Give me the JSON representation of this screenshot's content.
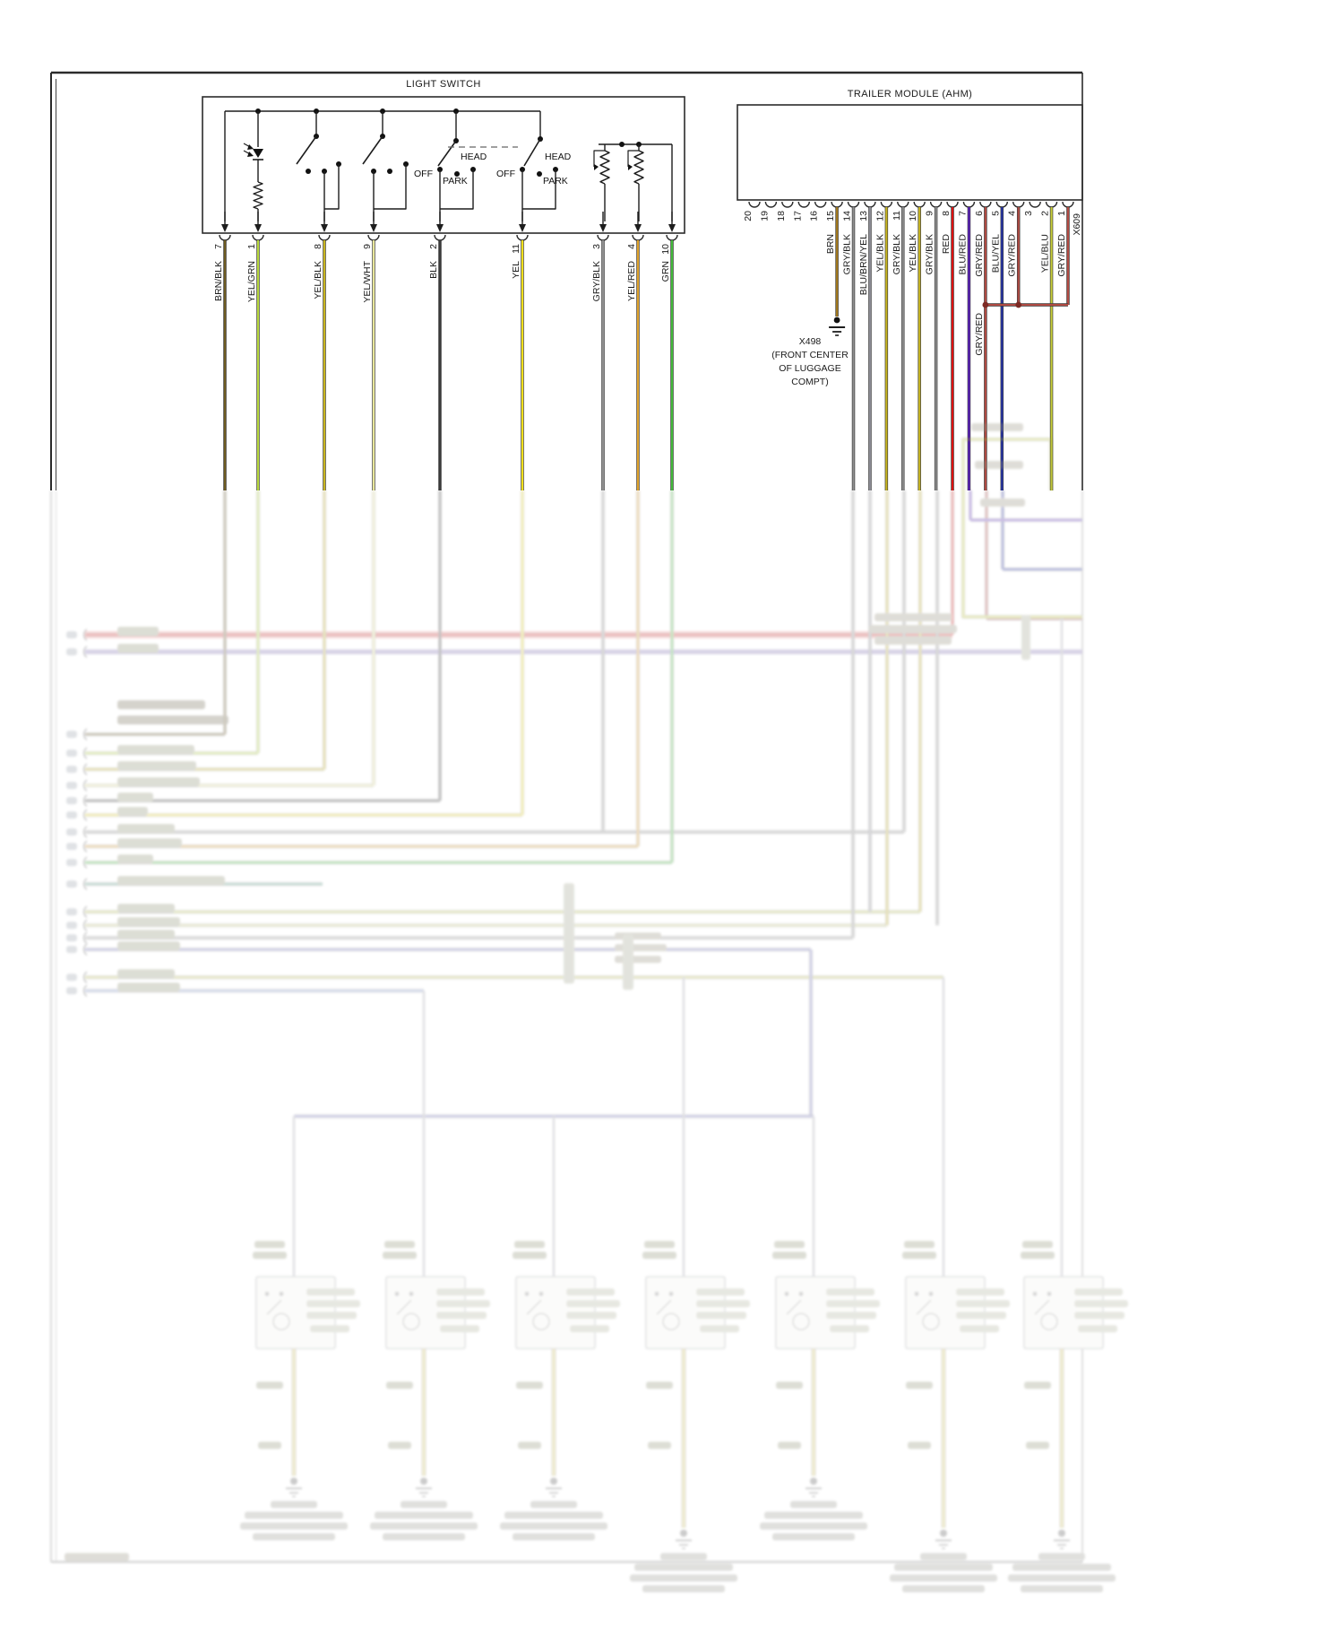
{
  "light_switch": {
    "title": "LIGHT SWITCH",
    "switch_labels": {
      "off1": "OFF",
      "park1": "PARK",
      "head1": "HEAD",
      "off2": "OFF",
      "park2": "PARK",
      "head2": "HEAD"
    },
    "pins": [
      {
        "num": "7",
        "color": "BRN/BLK"
      },
      {
        "num": "1",
        "color": "YEL/GRN"
      },
      {
        "num": "8",
        "color": "YEL/BLK"
      },
      {
        "num": "9",
        "color": "YEL/WHT"
      },
      {
        "num": "2",
        "color": "BLK"
      },
      {
        "num": "11",
        "color": "YEL"
      },
      {
        "num": "3",
        "color": "GRY/BLK"
      },
      {
        "num": "4",
        "color": "YEL/RED"
      },
      {
        "num": "10",
        "color": "GRN"
      }
    ]
  },
  "trailer_module": {
    "title": "TRAILER MODULE (AHM)",
    "connector": "X609",
    "splice_label": "GRY/RED",
    "pins": [
      {
        "num": "20",
        "color": ""
      },
      {
        "num": "19",
        "color": ""
      },
      {
        "num": "18",
        "color": ""
      },
      {
        "num": "17",
        "color": ""
      },
      {
        "num": "16",
        "color": ""
      },
      {
        "num": "15",
        "color": "BRN"
      },
      {
        "num": "14",
        "color": "GRY/BLK"
      },
      {
        "num": "13",
        "color": "BLU/BRN/YEL"
      },
      {
        "num": "12",
        "color": "YEL/BLK"
      },
      {
        "num": "11",
        "color": "GRY/BLK"
      },
      {
        "num": "10",
        "color": "YEL/BLK"
      },
      {
        "num": "9",
        "color": "GRY/BLK"
      },
      {
        "num": "8",
        "color": "RED"
      },
      {
        "num": "7",
        "color": "BLU/RED"
      },
      {
        "num": "6",
        "color": "GRY/RED"
      },
      {
        "num": "5",
        "color": "BLU/YEL"
      },
      {
        "num": "4",
        "color": "GRY/RED"
      },
      {
        "num": "3",
        "color": ""
      },
      {
        "num": "2",
        "color": "YEL/BLU"
      },
      {
        "num": "1",
        "color": "GRY/RED"
      }
    ]
  },
  "ground_x498": {
    "lines": [
      "X498",
      "(FRONT CENTER",
      "OF LUGGAGE",
      "COMPT)"
    ]
  },
  "wire_colors": {
    "BRN/BLK": "#6d5a20",
    "YEL/GRN": "#b8d83e",
    "YEL/BLK": "#c8b51f",
    "YEL/WHT": "#e9e79b",
    "BLK": "#3a3a3a",
    "YEL": "#efdf1b",
    "GRY/BLK": "#909090",
    "YEL/RED": "#dfa22b",
    "GRN": "#43bb3a",
    "BRN": "#a3791d",
    "BLU/BRN/YEL": "#8c8c94",
    "RED": "#dd1111",
    "BLU/RED": "#5a1ec0",
    "GRY/RED": "#b04a42",
    "BLU/YEL": "#2433a8",
    "YEL/BLU": "#c8cf3a"
  }
}
